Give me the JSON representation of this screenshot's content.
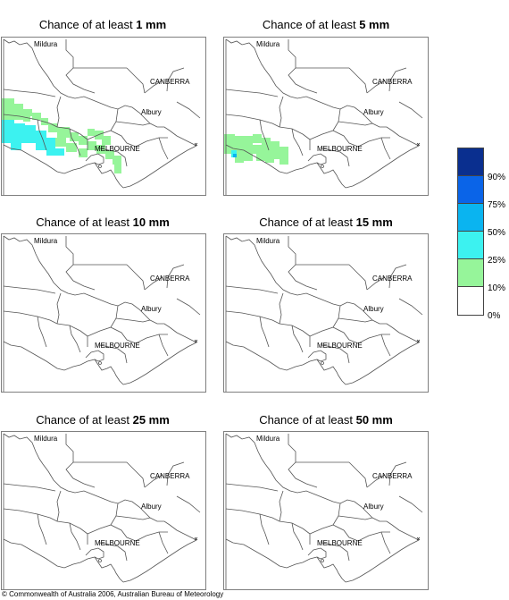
{
  "panels": [
    {
      "title_prefix": "Chance of at least ",
      "threshold": "1 mm"
    },
    {
      "title_prefix": "Chance of at least ",
      "threshold": "5 mm"
    },
    {
      "title_prefix": "Chance of at least ",
      "threshold": "10 mm"
    },
    {
      "title_prefix": "Chance of at least ",
      "threshold": "15 mm"
    },
    {
      "title_prefix": "Chance of at least ",
      "threshold": "25 mm"
    },
    {
      "title_prefix": "Chance of at least ",
      "threshold": "50 mm"
    }
  ],
  "cities": {
    "mildura": "Mildura",
    "canberra": "CANBERRA",
    "albury": "Albury",
    "melbourne": "MELBOURNE"
  },
  "legend": {
    "labels": [
      "90%",
      "75%",
      "50%",
      "25%",
      "10%",
      "0%"
    ],
    "colors": [
      "#0a2f8f",
      "#0a64e8",
      "#0ab4f0",
      "#3cf2f0",
      "#96f59a",
      "#ffffff"
    ]
  },
  "probability_colors": {
    "10_25": "#96f59a",
    "25_50": "#3cf2f0",
    "50_75": "#0ab4f0"
  },
  "copyright": "© Commonwealth of Australia 2006, Australian Bureau of Meteorology"
}
